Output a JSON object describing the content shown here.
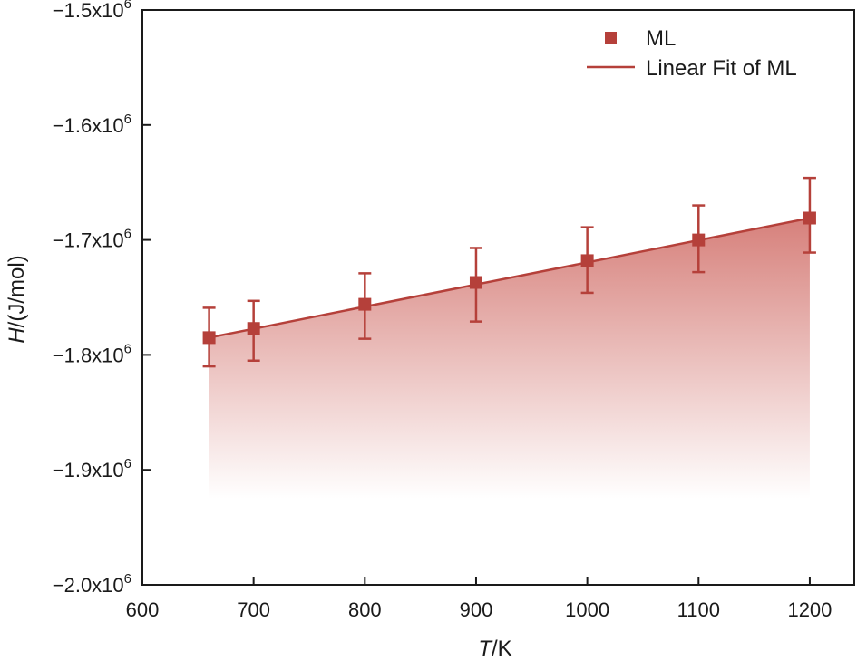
{
  "chart_data": {
    "type": "scatter",
    "xlabel_italic": "T",
    "xlabel_rest": "/K",
    "ylabel_italic": "H",
    "ylabel_rest": "/(J/mol)",
    "xlim": [
      600,
      1240
    ],
    "ylim": [
      -2000000,
      -1500000
    ],
    "x_ticks": [
      600,
      700,
      800,
      900,
      1000,
      1100,
      1200
    ],
    "y_ticks": [
      {
        "value": -1500000,
        "mantissa": "−1.5x10",
        "exp": "6"
      },
      {
        "value": -1600000,
        "mantissa": "−1.6x10",
        "exp": "6"
      },
      {
        "value": -1700000,
        "mantissa": "−1.7x10",
        "exp": "6"
      },
      {
        "value": -1800000,
        "mantissa": "−1.8x10",
        "exp": "6"
      },
      {
        "value": -1900000,
        "mantissa": "−1.9x10",
        "exp": "6"
      },
      {
        "value": -2000000,
        "mantissa": "−2.0x10",
        "exp": "6"
      }
    ],
    "series": [
      {
        "name": "ML",
        "marker": "square",
        "color": "#b5403a",
        "points": [
          {
            "x": 660,
            "y": -1785000,
            "ylow": -1810000,
            "yhigh": -1759000
          },
          {
            "x": 700,
            "y": -1777000,
            "ylow": -1805000,
            "yhigh": -1753000
          },
          {
            "x": 800,
            "y": -1756000,
            "ylow": -1786000,
            "yhigh": -1729000
          },
          {
            "x": 900,
            "y": -1737000,
            "ylow": -1771000,
            "yhigh": -1707000
          },
          {
            "x": 1000,
            "y": -1718000,
            "ylow": -1746000,
            "yhigh": -1689000
          },
          {
            "x": 1100,
            "y": -1700000,
            "ylow": -1728000,
            "yhigh": -1670000
          },
          {
            "x": 1200,
            "y": -1681000,
            "ylow": -1711000,
            "yhigh": -1646000
          }
        ]
      }
    ],
    "fit": {
      "name": "Linear Fit of ML",
      "color": "#b5403a",
      "x": [
        660,
        1200
      ],
      "y": [
        -1785000,
        -1681000
      ]
    },
    "fill": {
      "color": "#c9564f",
      "to_y": -1925000
    },
    "legend_position": "top-right",
    "grid": false
  }
}
